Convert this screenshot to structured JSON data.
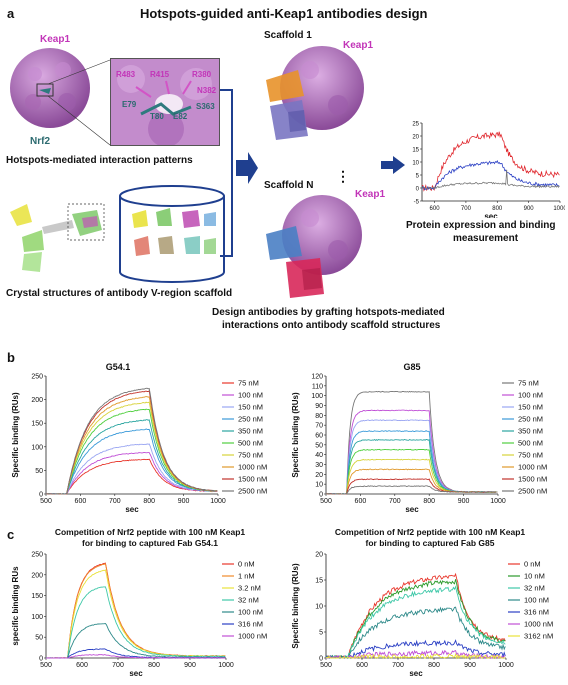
{
  "panel_a": {
    "letter": "a",
    "title": "Hotspots-guided anti-Keap1 antibodies design",
    "keap1_label": "Keap1",
    "nrf2_label": "Nrf2",
    "residues": [
      "R483",
      "R415",
      "R380",
      "N382",
      "E79",
      "T80",
      "E82",
      "S363"
    ],
    "hotspots_caption": "Hotspots-mediated interaction patterns",
    "crystal_caption": "Crystal structures of antibody V-region scaffold",
    "scaffold1_label": "Scaffold 1",
    "scaffold1_keap1": "Keap1",
    "scaffoldN_label": "Scaffold N",
    "scaffoldN_keap1": "Keap1",
    "dots": "⋮",
    "design_caption_line1": "Design antibodies by grafting hotspots-mediated",
    "design_caption_line2": "interactions onto antibody scaffold structures",
    "protein_caption_line1": "Protein expression and binding",
    "protein_caption_line2": "measurement",
    "colors": {
      "keap1": "#b573c6",
      "nrf2": "#2e7a7e",
      "arrow": "#1f3f8f"
    },
    "mini_chart": {
      "type": "line",
      "xlabel": "sec",
      "xlim": [
        560,
        1000
      ],
      "ylim": [
        -5,
        25
      ],
      "xticks": [
        600,
        700,
        800,
        900,
        1000
      ],
      "yticks": [
        -5,
        0,
        5,
        10,
        15,
        20,
        25
      ],
      "series": [
        {
          "color": "#e0262c",
          "plateau": 21,
          "end": 5
        },
        {
          "color": "#2a3fc4",
          "plateau": 10,
          "end": 1
        },
        {
          "color": "#777777",
          "plateau": 2,
          "end": 0.5
        }
      ]
    }
  },
  "panel_b": {
    "letter": "b",
    "charts": [
      {
        "title": "G54.1",
        "ylabel": "Specific binding (RUs)",
        "xlabel": "sec",
        "xlim": [
          500,
          1000
        ],
        "ylim": [
          0,
          250
        ],
        "xticks": [
          500,
          600,
          700,
          800,
          900,
          1000
        ],
        "yticks": [
          0,
          50,
          100,
          150,
          200,
          250
        ],
        "legend": [
          "75 nM",
          "100 nM",
          "150 nM",
          "250 nM",
          "350 nM",
          "500 nM",
          "750 nM",
          "1000 nM",
          "1500 nM",
          "2500 nM"
        ],
        "colors": [
          "#e8372c",
          "#c04fd6",
          "#9aa6f2",
          "#3a9ad9",
          "#2aa5a0",
          "#4fcf3e",
          "#d7d33a",
          "#e09a2c",
          "#c2312a",
          "#777777"
        ],
        "plateaus": [
          75,
          90,
          108,
          140,
          160,
          183,
          198,
          210,
          222,
          228
        ],
        "dissoc_end": 5
      },
      {
        "title": "G85",
        "ylabel": "Specific binding (RUs)",
        "xlabel": "sec",
        "xlim": [
          500,
          1000
        ],
        "ylim": [
          0,
          120
        ],
        "xticks": [
          500,
          600,
          700,
          800,
          900,
          1000
        ],
        "yticks": [
          0,
          10,
          20,
          30,
          40,
          50,
          60,
          70,
          80,
          90,
          100,
          110,
          120
        ],
        "legend": [
          "75 nM",
          "100 nM",
          "150 nM",
          "250 nM",
          "350 nM",
          "500 nM",
          "750 nM",
          "1000 nM",
          "1500 nM",
          "2500 nM"
        ],
        "colors": [
          "#777777",
          "#c04fd6",
          "#9aa6f2",
          "#3a9ad9",
          "#2aa5a0",
          "#4fcf3e",
          "#d7d33a",
          "#e09a2c",
          "#c2312a",
          "#777777"
        ],
        "plateaus": [
          104,
          85,
          75,
          64,
          55,
          45,
          35,
          25,
          15,
          8
        ],
        "dissoc_end": 2
      }
    ]
  },
  "panel_c": {
    "letter": "c",
    "charts": [
      {
        "title_line1": "Competition of Nrf2 peptide with 100 nM Keap1",
        "title_line2": "for binding to captured Fab G54.1",
        "ylabel": "specific binding RUs",
        "xlabel": "sec",
        "xlim": [
          500,
          1000
        ],
        "ylim": [
          0,
          250
        ],
        "xticks": [
          500,
          600,
          700,
          800,
          900,
          1000
        ],
        "yticks": [
          0,
          50,
          100,
          150,
          200,
          250
        ],
        "legend": [
          "0 nM",
          "1 nM",
          "3.2 nM",
          "32 nM",
          "100 nM",
          "316 nM",
          "1000 nM"
        ],
        "colors": [
          "#e8372c",
          "#f08a2a",
          "#e8e23a",
          "#3ec8a8",
          "#2e8a8a",
          "#2a3fc4",
          "#c04fd6"
        ],
        "peaks": [
          232,
          230,
          215,
          175,
          85,
          22,
          8
        ],
        "dissoc_end": 5
      },
      {
        "title_line1": "Competition of Nrf2 peptide with 100 nM Keap1",
        "title_line2": "for binding to captured Fab G85",
        "ylabel": "Specific binding (RUs)",
        "xlabel": "sec",
        "xlim": [
          500,
          1000
        ],
        "ylim": [
          0,
          20
        ],
        "xticks": [
          500,
          600,
          700,
          800,
          900,
          1000
        ],
        "yticks": [
          0,
          5,
          10,
          15,
          20
        ],
        "legend": [
          "0 nM",
          "10 nM",
          "32 nM",
          "100 nM",
          "316 nM",
          "1000 nM",
          "3162 nM"
        ],
        "colors": [
          "#e8372c",
          "#2a9a2a",
          "#3ec8a8",
          "#2e8a8a",
          "#2a3fc4",
          "#c04fd6",
          "#e8e23a"
        ],
        "peaks": [
          16,
          15,
          13.5,
          9.5,
          3,
          1,
          0.3
        ],
        "dissoc_end": 3
      }
    ]
  }
}
